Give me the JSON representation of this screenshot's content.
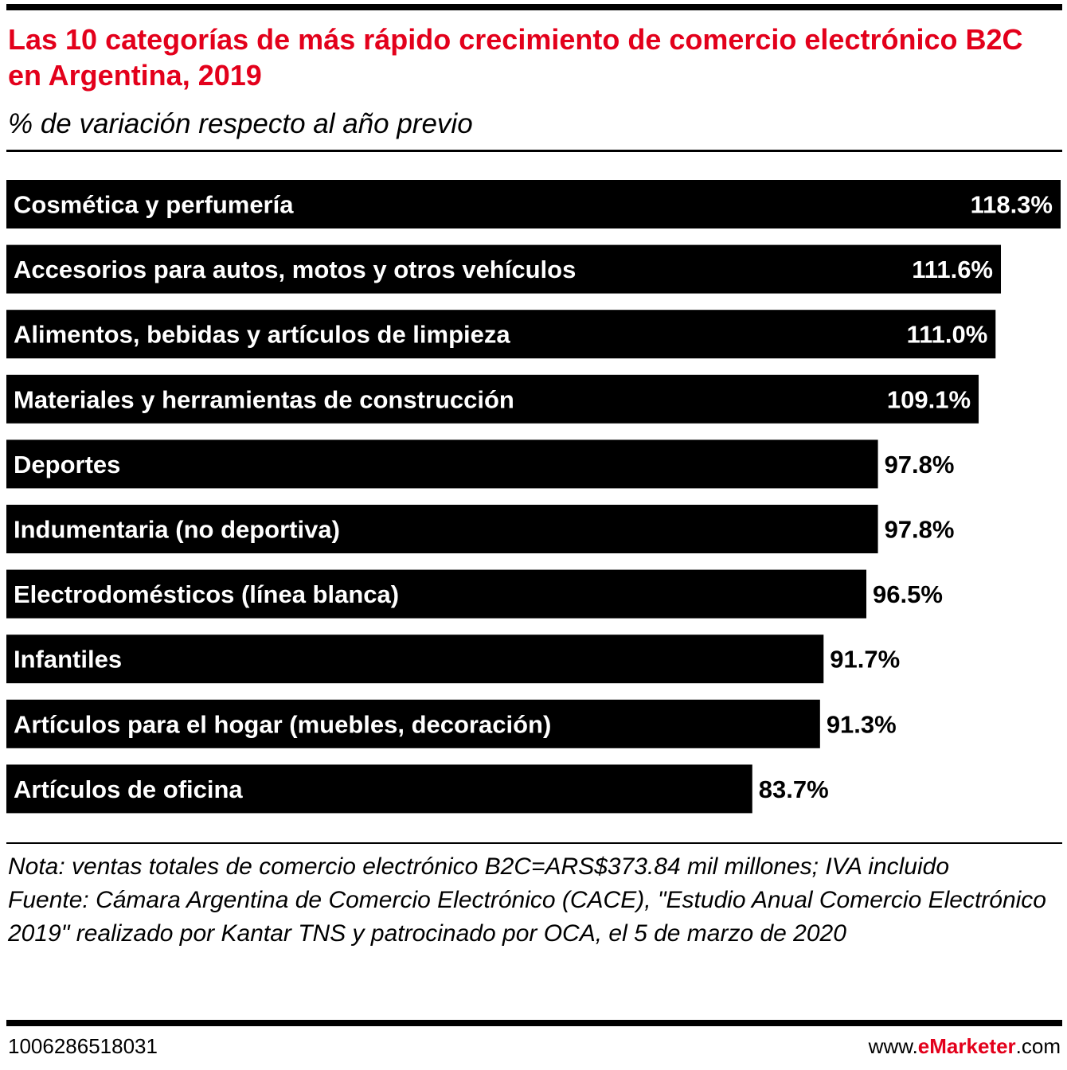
{
  "header": {
    "title": "Las 10 categorías de más rápido crecimiento de comercio electrónico B2C en Argentina, 2019",
    "subtitle": "% de variación respecto al año previo"
  },
  "chart_data": {
    "type": "bar",
    "orientation": "horizontal",
    "title": "Las 10 categorías de más rápido crecimiento de comercio electrónico B2C en Argentina, 2019",
    "subtitle": "% de variación respecto al año previo",
    "xlabel": "",
    "ylabel": "",
    "xlim": [
      0,
      118.3
    ],
    "grid": false,
    "bar_color": "#000000",
    "categories": [
      "Cosmética y perfumería",
      "Accesorios para autos, motos y otros vehículos",
      "Alimentos, bebidas y artículos de limpieza",
      "Materiales y herramientas de construcción",
      "Deportes",
      "Indumentaria (no deportiva)",
      "Electrodomésticos (línea blanca)",
      "Infantiles",
      "Artículos para el hogar (muebles, decoración)",
      "Artículos de oficina"
    ],
    "values": [
      118.3,
      111.6,
      111.0,
      109.1,
      97.8,
      97.8,
      96.5,
      91.7,
      91.3,
      83.7
    ],
    "value_labels": [
      "118.3%",
      "111.6%",
      "111.0%",
      "109.1%",
      "97.8%",
      "97.8%",
      "96.5%",
      "91.7%",
      "91.3%",
      "83.7%"
    ]
  },
  "footer": {
    "note": "Nota: ventas totales de comercio electrónico B2C=ARS$373.84 mil millones; IVA incluido",
    "source": "Fuente: Cámara Argentina de Comercio Electrónico (CACE), \"Estudio Anual Comercio Electrónico 2019\" realizado por Kantar TNS y patrocinado por OCA, el 5 de marzo de 2020",
    "chart_id": "1006286518031",
    "brand_prefix": "www.",
    "brand_name": "eMarketer",
    "brand_suffix": ".com"
  },
  "colors": {
    "accent": "#e3001b",
    "bar": "#000000",
    "bar_text": "#ffffff",
    "text": "#000000"
  }
}
